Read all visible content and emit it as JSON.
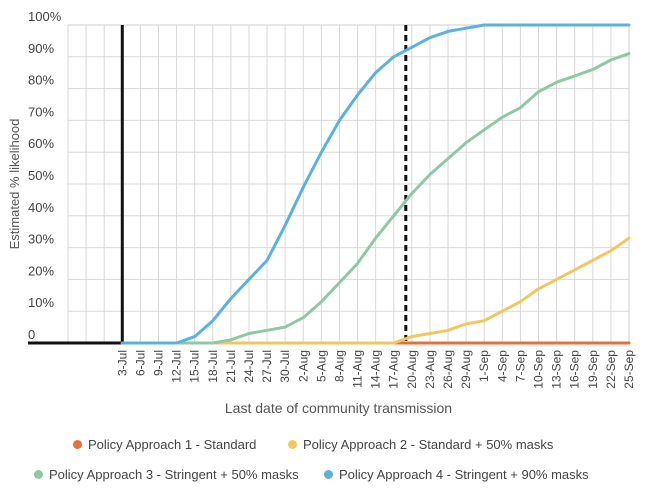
{
  "chart_data": {
    "type": "line",
    "title": "",
    "ylabel": "Estimated % likelihood",
    "xlabel": "Last date of community transmission",
    "ylim": [
      0,
      100
    ],
    "yticks": [
      "0",
      "10%",
      "20%",
      "30%",
      "40%",
      "50%",
      "60%",
      "70%",
      "80%",
      "90%",
      "100%"
    ],
    "grid": true,
    "legend_position": "bottom",
    "categories": [
      "3-Jul",
      "6-Jul",
      "9-Jul",
      "12-Jul",
      "15-Jul",
      "18-Jul",
      "21-Jul",
      "24-Jul",
      "27-Jul",
      "30-Jul",
      "2-Aug",
      "5-Aug",
      "8-Aug",
      "11-Aug",
      "14-Aug",
      "17-Aug",
      "20-Aug",
      "23-Aug",
      "26-Aug",
      "29-Aug",
      "1-Sep",
      "4-Sep",
      "7-Sep",
      "10-Sep",
      "13-Sep",
      "16-Sep",
      "19-Sep",
      "22-Sep",
      "25-Sep"
    ],
    "vertical_markers": [
      {
        "x": "3-Jul",
        "style": "solid"
      },
      {
        "x": "19-Aug",
        "style": "dashed"
      }
    ],
    "series": [
      {
        "name": "Policy Approach 1 - Standard",
        "color": "#e8703a",
        "values": [
          0,
          0,
          0,
          0,
          0,
          0,
          0,
          0,
          0,
          0,
          0,
          0,
          0,
          0,
          0,
          0,
          0,
          0,
          0,
          0,
          0,
          0,
          0,
          0,
          0,
          0,
          0,
          0,
          0
        ]
      },
      {
        "name": "Policy Approach 2 - Standard + 50% masks",
        "color": "#f3c75f",
        "values": [
          0,
          0,
          0,
          0,
          0,
          0,
          0,
          0,
          0,
          0,
          0,
          0,
          0,
          0,
          0,
          0,
          2,
          3,
          4,
          6,
          7,
          10,
          13,
          17,
          20,
          23,
          26,
          29,
          33
        ]
      },
      {
        "name": "Policy Approach 3 - Stringent + 50% masks",
        "color": "#8ec9a4",
        "values": [
          0,
          0,
          0,
          0,
          0,
          0,
          1,
          3,
          4,
          5,
          8,
          13,
          19,
          25,
          33,
          40,
          47,
          53,
          58,
          63,
          67,
          71,
          74,
          79,
          82,
          84,
          86,
          89,
          91
        ]
      },
      {
        "name": "Policy Approach 4 - Stringent + 90% masks",
        "color": "#5cb0e2",
        "values": [
          0,
          0,
          0,
          0,
          2,
          7,
          14,
          20,
          26,
          37,
          49,
          60,
          70,
          78,
          85,
          90,
          93,
          96,
          98,
          99,
          100,
          100,
          100,
          100,
          100,
          100,
          100,
          100,
          100
        ]
      }
    ]
  }
}
